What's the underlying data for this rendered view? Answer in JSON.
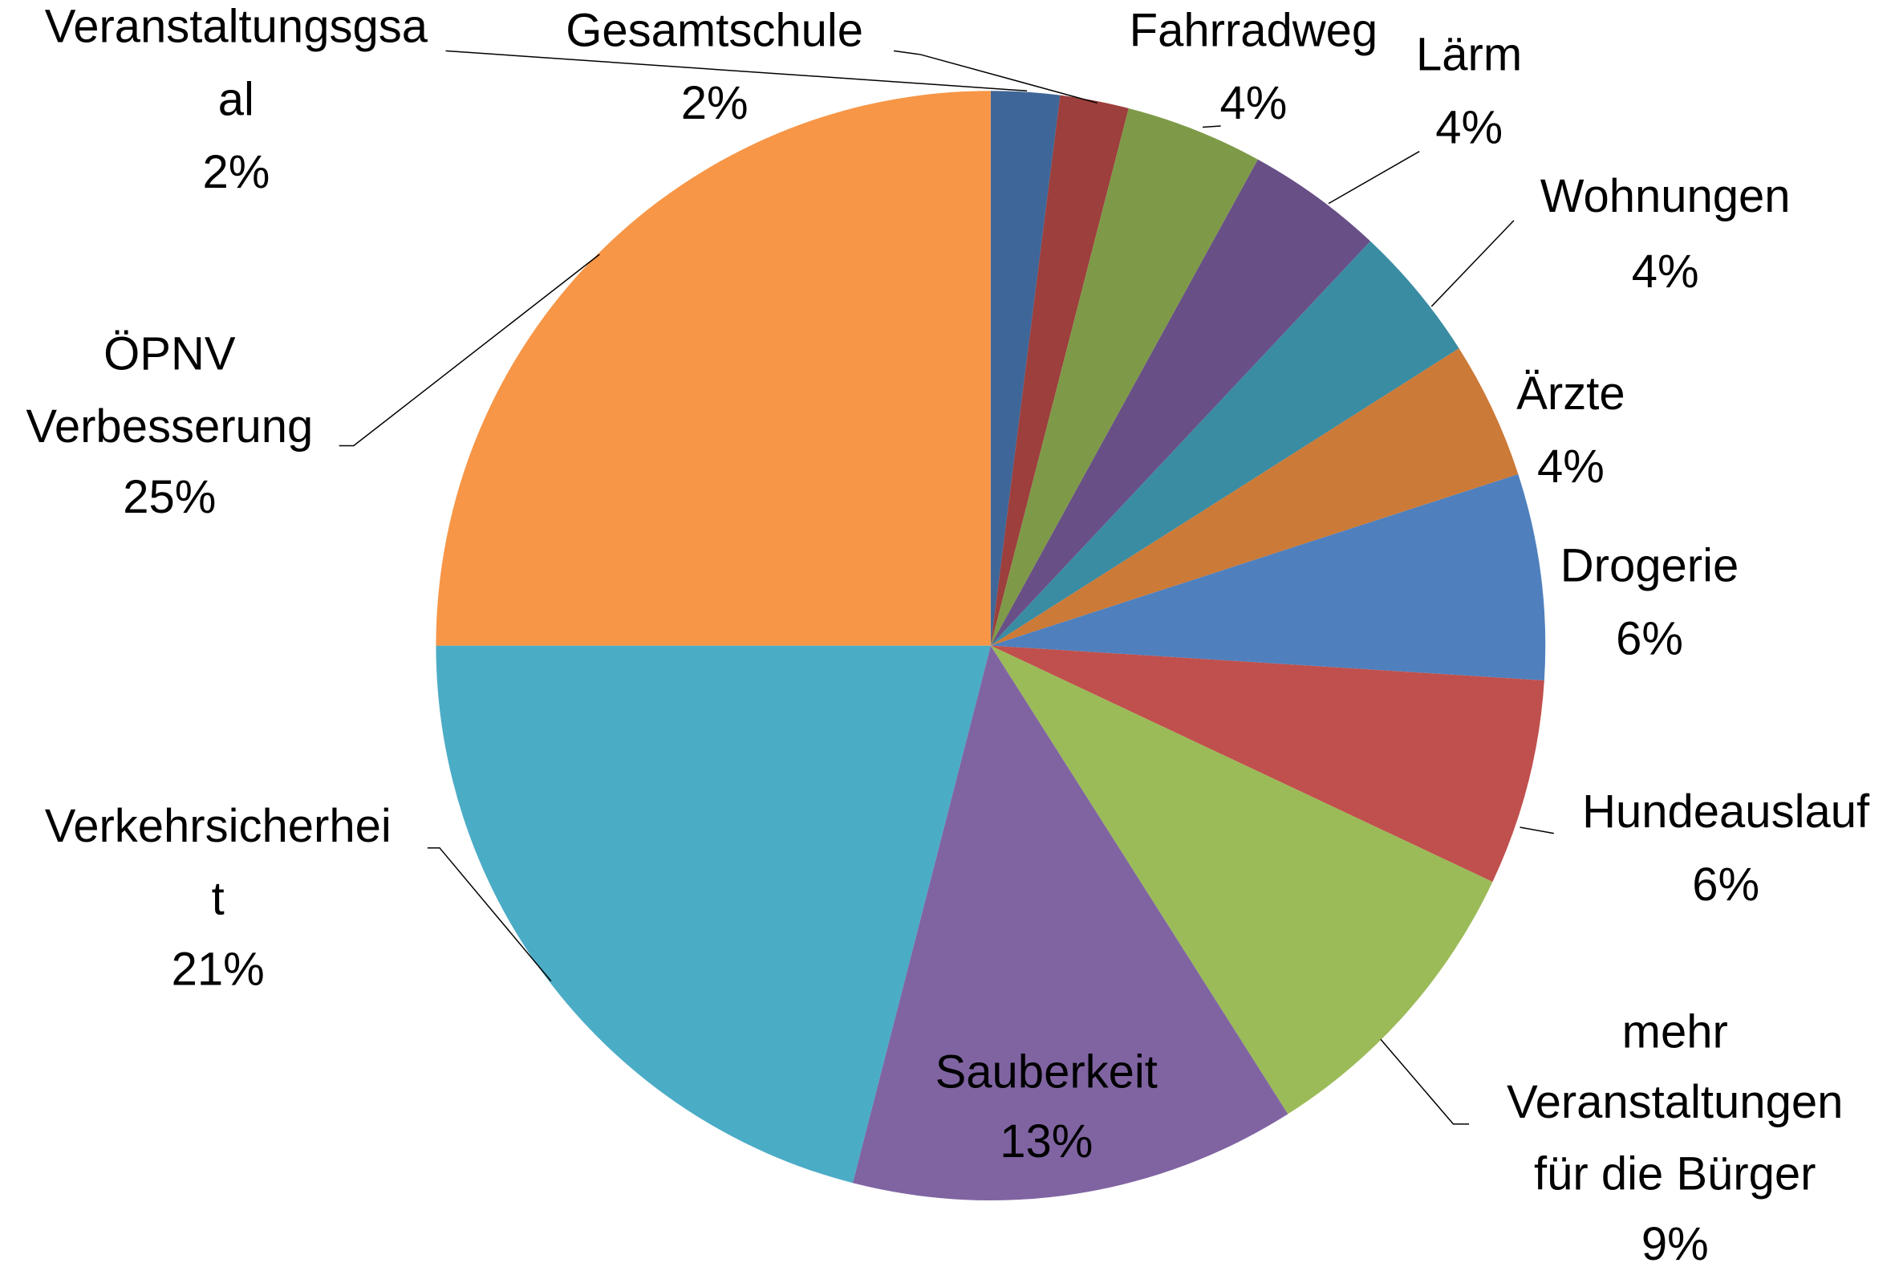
{
  "chart_data": {
    "type": "pie",
    "categories": [
      "Veranstaltungsgsaal",
      "Gesamtschule",
      "Fahrradweg",
      "Lärm",
      "Wohnungen",
      "Ärzte",
      "Drogerie",
      "Hundeauslauf",
      "mehr Veranstaltungen für die Bürger",
      "Sauberkeit",
      "Verkehrsicherheit",
      "ÖPNV Verbesserung"
    ],
    "values": [
      2,
      2,
      4,
      4,
      4,
      4,
      6,
      6,
      9,
      13,
      21,
      25
    ],
    "value_labels": [
      "2%",
      "2%",
      "4%",
      "4%",
      "4%",
      "4%",
      "6%",
      "6%",
      "9%",
      "13%",
      "21%",
      "25%"
    ],
    "colors": [
      "#3f6698",
      "#9c3f3d",
      "#7e9a48",
      "#684f86",
      "#3a8ca2",
      "#cc7a38",
      "#4f80bd",
      "#c0504d",
      "#9bbb59",
      "#8064a2",
      "#4bacc6",
      "#f79646"
    ]
  }
}
